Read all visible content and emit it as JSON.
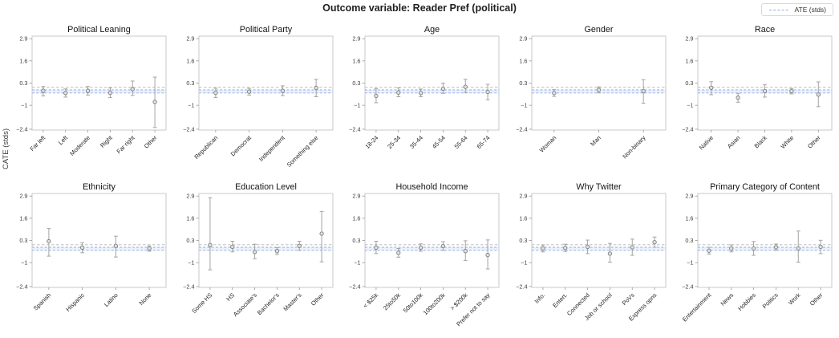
{
  "header": {
    "title": "Outcome variable: Reader Pref (political)"
  },
  "legend": {
    "label": "ATE (stds)"
  },
  "ylabel": "CATE (stds)",
  "colors": {
    "ate_line": "#8fa9e0",
    "ate_band": "#dde7f8",
    "zero_line": "#b3b3b3",
    "error_bar": "#a3a3a3",
    "point_fill": "#e2e2e2",
    "point_edge": "#7d7d7d",
    "spine": "#c9c9c9"
  },
  "axis": {
    "ylim": [
      -2.45,
      3.05
    ],
    "yticks": [
      2.9,
      1.6,
      0.3,
      -1.0,
      -2.4
    ],
    "reference_line": 0.05
  },
  "ate": {
    "value": -0.19,
    "band": [
      -0.28,
      -0.1
    ]
  },
  "chart_data": [
    {
      "type": "errorbar",
      "id": "political-leaning",
      "title": "Political Leaning",
      "categories": [
        "Far left",
        "Left",
        "Moderate",
        "Right",
        "Far right",
        "Other"
      ],
      "values": [
        -0.15,
        -0.28,
        -0.15,
        -0.27,
        -0.05,
        -0.8
      ],
      "err_low": [
        -0.45,
        -0.52,
        -0.4,
        -0.55,
        -0.42,
        -2.3
      ],
      "err_high": [
        0.1,
        -0.04,
        0.1,
        0.02,
        0.42,
        0.65
      ]
    },
    {
      "type": "errorbar",
      "id": "political-party",
      "title": "Political Party",
      "categories": [
        "Republican",
        "Democrat",
        "Independent",
        "Something else"
      ],
      "values": [
        -0.27,
        -0.2,
        -0.15,
        0.02
      ],
      "err_low": [
        -0.55,
        -0.4,
        -0.43,
        -0.5
      ],
      "err_high": [
        0.0,
        -0.01,
        0.14,
        0.52
      ]
    },
    {
      "type": "errorbar",
      "id": "age",
      "title": "Age",
      "categories": [
        "18-24",
        "25-34",
        "35-44",
        "45-54",
        "55-64",
        "65-74"
      ],
      "values": [
        -0.45,
        -0.25,
        -0.28,
        -0.03,
        0.08,
        -0.22
      ],
      "err_low": [
        -0.85,
        -0.5,
        -0.5,
        -0.3,
        -0.25,
        -0.68
      ],
      "err_high": [
        -0.02,
        0.02,
        -0.05,
        0.3,
        0.52,
        0.23
      ]
    },
    {
      "type": "errorbar",
      "id": "gender",
      "title": "Gender",
      "categories": [
        "Woman",
        "Man",
        "Non-binary"
      ],
      "values": [
        -0.28,
        -0.1,
        -0.17
      ],
      "err_low": [
        -0.48,
        -0.27,
        -0.88
      ],
      "err_high": [
        -0.08,
        0.08,
        0.5
      ]
    },
    {
      "type": "errorbar",
      "id": "race",
      "title": "Race",
      "categories": [
        "Native",
        "Asian",
        "Black",
        "White",
        "Other"
      ],
      "values": [
        0.03,
        -0.55,
        -0.17,
        -0.17,
        -0.37
      ],
      "err_low": [
        -0.38,
        -0.82,
        -0.52,
        -0.33,
        -1.08
      ],
      "err_high": [
        0.38,
        -0.3,
        0.2,
        -0.02,
        0.37
      ]
    },
    {
      "type": "errorbar",
      "id": "ethnicity",
      "title": "Ethnicity",
      "categories": [
        "Spanish",
        "Hispanic",
        "Latino",
        "None"
      ],
      "values": [
        0.25,
        -0.12,
        -0.02,
        -0.17
      ],
      "err_low": [
        -0.62,
        -0.42,
        -0.67,
        -0.33
      ],
      "err_high": [
        1.0,
        0.17,
        0.55,
        -0.02
      ]
    },
    {
      "type": "errorbar",
      "id": "education-level",
      "title": "Education Level",
      "categories": [
        "Some HS",
        "HS",
        "Associate's",
        "Bachelor's",
        "Master's",
        "Other"
      ],
      "values": [
        0.03,
        -0.07,
        -0.37,
        -0.32,
        -0.02,
        0.7
      ],
      "err_low": [
        -1.42,
        -0.37,
        -0.77,
        -0.52,
        -0.28,
        -0.95
      ],
      "err_high": [
        2.8,
        0.25,
        0.08,
        -0.12,
        0.25,
        2.0
      ]
    },
    {
      "type": "errorbar",
      "id": "household-income",
      "title": "Household Income",
      "categories": [
        "< $25k",
        "25to50k",
        "50to100k",
        "100to200k",
        "> $200k",
        "Prefer not to say"
      ],
      "values": [
        -0.12,
        -0.42,
        -0.12,
        -0.03,
        -0.32,
        -0.55
      ],
      "err_low": [
        -0.47,
        -0.68,
        -0.33,
        -0.28,
        -0.87,
        -1.37
      ],
      "err_high": [
        0.25,
        -0.17,
        0.1,
        0.23,
        0.28,
        0.33
      ]
    },
    {
      "type": "errorbar",
      "id": "why-twitter",
      "title": "Why Twitter",
      "categories": [
        "Info.",
        "Entert.",
        "Connected",
        "Job or school",
        "PoVs",
        "Express opns"
      ],
      "values": [
        -0.17,
        -0.14,
        -0.07,
        -0.47,
        -0.1,
        0.2
      ],
      "err_low": [
        -0.37,
        -0.34,
        -0.47,
        -0.97,
        -0.57,
        -0.1
      ],
      "err_high": [
        0.03,
        0.08,
        0.32,
        0.13,
        0.38,
        0.5
      ]
    },
    {
      "type": "errorbar",
      "id": "primary-category-of-content",
      "title": "Primary Category of Content",
      "categories": [
        "Entertainment",
        "News",
        "Hobbies",
        "Politics",
        "Work",
        "Other"
      ],
      "values": [
        -0.3,
        -0.17,
        -0.17,
        -0.1,
        -0.17,
        -0.07
      ],
      "err_low": [
        -0.5,
        -0.37,
        -0.57,
        -0.28,
        -0.97,
        -0.47
      ],
      "err_high": [
        -0.1,
        0.04,
        0.24,
        0.09,
        0.85,
        0.31
      ]
    }
  ]
}
